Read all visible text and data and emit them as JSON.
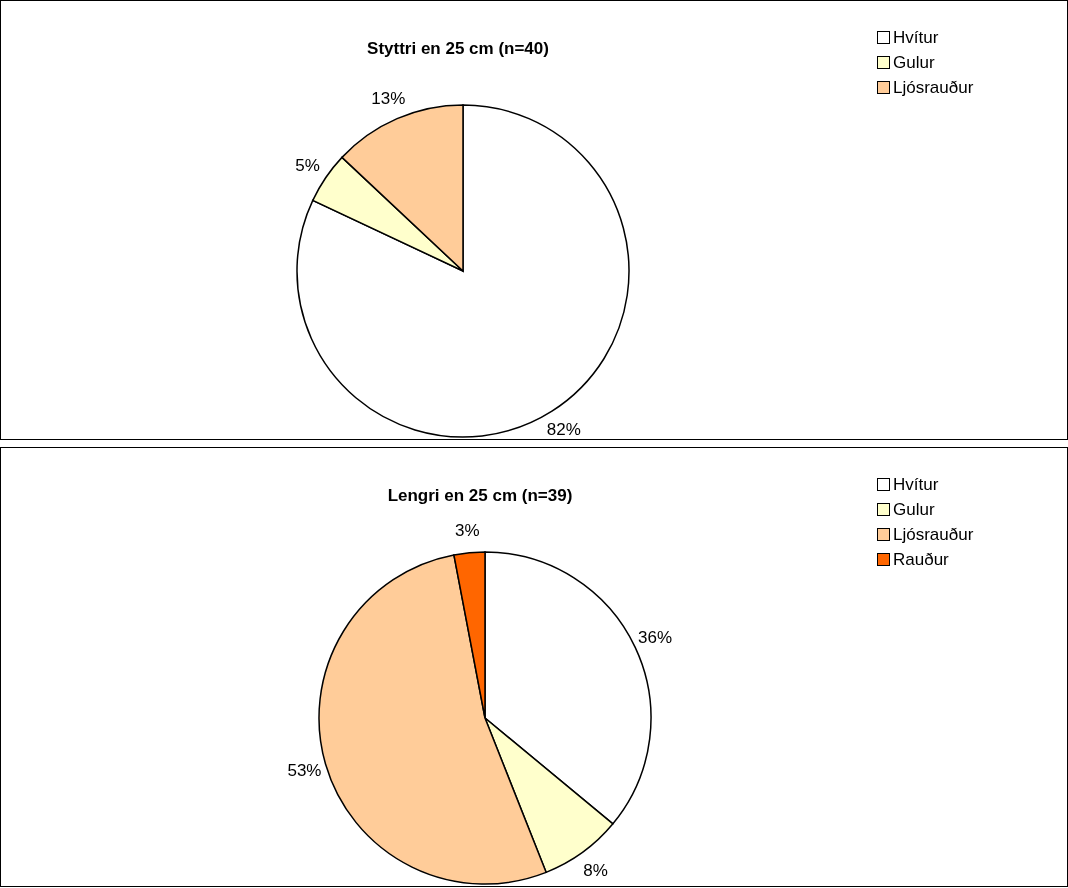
{
  "chart_data": [
    {
      "type": "pie",
      "title": "Styttri en 25 cm (n=40)",
      "categories": [
        "Hvítur",
        "Gulur",
        "Ljósrauður"
      ],
      "values": [
        82,
        5,
        13
      ],
      "colors": [
        "#ffffff",
        "#ffffcc",
        "#ffcc99"
      ],
      "value_labels": [
        "82%",
        "5%",
        "13%"
      ],
      "legend": "top right"
    },
    {
      "type": "pie",
      "title": "Lengri en 25 cm (n=39)",
      "categories": [
        "Hvítur",
        "Gulur",
        "Ljósrauður",
        "Rauður"
      ],
      "values": [
        36,
        8,
        53,
        3
      ],
      "colors": [
        "#ffffff",
        "#ffffcc",
        "#ffcc99",
        "#ff6600"
      ],
      "value_labels": [
        "36%",
        "8%",
        "53%",
        "3%"
      ],
      "legend": "top right"
    }
  ]
}
